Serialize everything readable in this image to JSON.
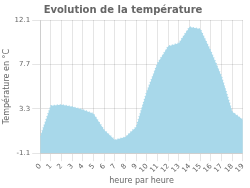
{
  "chart_data": {
    "type": "area",
    "title": "Evolution de la température",
    "xlabel": "heure par heure",
    "ylabel": "Température en °C",
    "x": [
      0,
      1,
      2,
      3,
      4,
      5,
      6,
      7,
      8,
      9,
      10,
      11,
      12,
      13,
      14,
      15,
      16,
      17,
      18,
      19
    ],
    "values": [
      0.5,
      3.6,
      3.7,
      3.5,
      3.2,
      2.8,
      1.2,
      0.2,
      0.5,
      1.5,
      5.0,
      7.8,
      9.5,
      9.8,
      11.4,
      11.2,
      9.0,
      6.5,
      3.0,
      2.2
    ],
    "color": "#a8d8ea",
    "line_style": "dotted",
    "xlim": [
      0,
      19
    ],
    "xticks": [
      0,
      1,
      2,
      3,
      4,
      5,
      6,
      7,
      8,
      9,
      10,
      11,
      12,
      13,
      14,
      15,
      16,
      17,
      18,
      19
    ],
    "ylim": [
      -1.1,
      12.1
    ],
    "yticks": [
      -1.1,
      3.3,
      7.7,
      12.1
    ],
    "grid": true
  }
}
